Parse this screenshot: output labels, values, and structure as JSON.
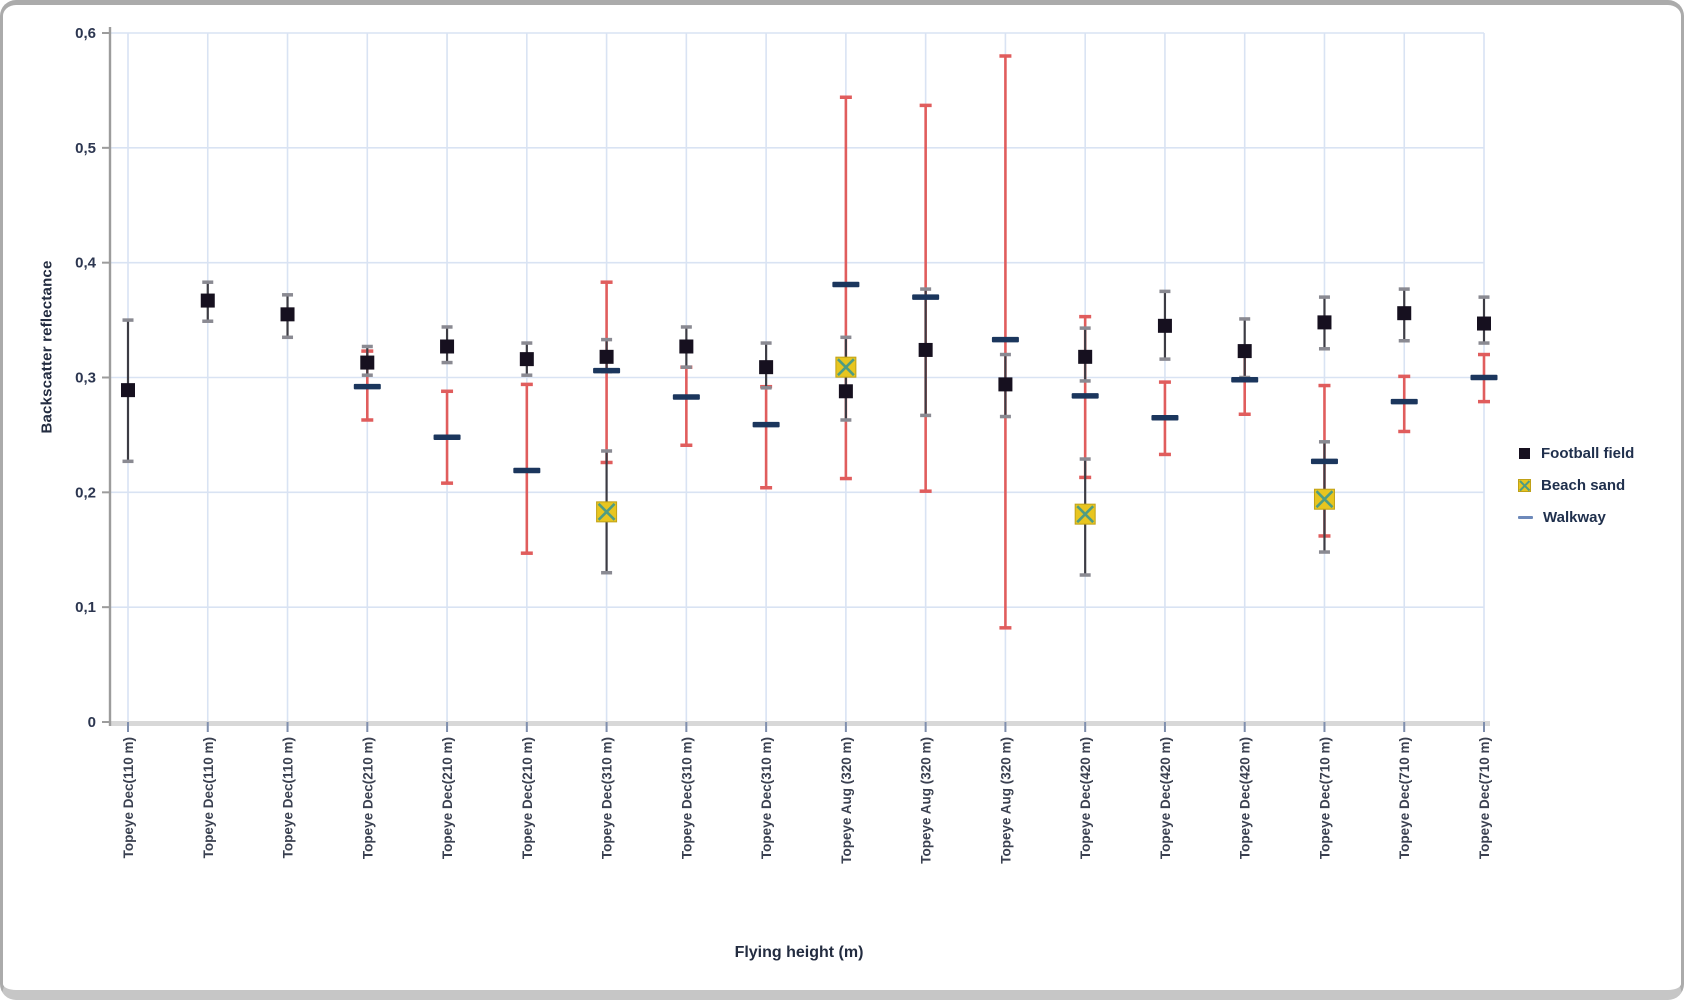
{
  "style": {
    "grid": "#d9e3f3",
    "axis": "#9c9c9c",
    "axis_band": "#d8d8d8",
    "xtick": "#7f8fae",
    "football": "#16101f",
    "black_err": "#3c3c44",
    "gray_cap": "#8a8a92",
    "beach_fill": "#e8c51f",
    "beach_edge": "#c0a117",
    "beach_x": "#4f9c83",
    "walkway": "#1b365d",
    "walkway_legend": "#6d89ba",
    "red_err": "#e05d5d",
    "frame_border": "#ababab"
  },
  "chart_data": {
    "type": "scatter",
    "title": "",
    "xlabel": "Flying height (m)",
    "ylabel": "Backscatter reflectance",
    "ylim": [
      0,
      0.6
    ],
    "grid": true,
    "legend_position": "right",
    "y_ticklabels": [
      "0",
      "0,1",
      "0,2",
      "0,3",
      "0,4",
      "0,5",
      "0,6"
    ],
    "categories": [
      "Topeye Dec(110 m)",
      "Topeye Dec(110 m)",
      "Topeye Dec(110 m)",
      "Topeye Dec(210 m)",
      "Topeye Dec(210 m)",
      "Topeye Dec(210 m)",
      "Topeye Dec(310 m)",
      "Topeye Dec(310 m)",
      "Topeye Dec(310 m)",
      "Topeye Aug (320 m)",
      "Topeye Aug (320 m)",
      "Topeye Aug (320 m)",
      "Topeye Dec(420 m)",
      "Topeye Dec(420 m)",
      "Topeye Dec(420 m)",
      "Topeye Dec(710 m)",
      "Topeye Dec(710 m)",
      "Topeye Dec(710 m)"
    ],
    "series": [
      {
        "name": "Football field",
        "marker": "square",
        "error_color": "black",
        "values": [
          0.289,
          0.367,
          0.355,
          0.313,
          0.327,
          0.316,
          0.318,
          0.327,
          0.309,
          0.288,
          0.324,
          0.294,
          0.318,
          0.345,
          0.323,
          0.348,
          0.356,
          0.347
        ],
        "err_lo": [
          0.227,
          0.349,
          0.335,
          0.302,
          0.313,
          0.302,
          0.305,
          0.309,
          0.291,
          0.263,
          0.267,
          0.266,
          0.297,
          0.316,
          0.3,
          0.325,
          0.332,
          0.33
        ],
        "err_hi": [
          0.35,
          0.383,
          0.372,
          0.327,
          0.344,
          0.33,
          0.333,
          0.344,
          0.33,
          0.335,
          0.377,
          0.32,
          0.343,
          0.375,
          0.351,
          0.37,
          0.377,
          0.37
        ]
      },
      {
        "name": "Beach sand",
        "marker": "x-square",
        "error_color": "black",
        "values": [
          null,
          null,
          null,
          null,
          null,
          null,
          0.183,
          null,
          null,
          0.309,
          null,
          null,
          0.181,
          null,
          null,
          0.194,
          null,
          null
        ],
        "err_lo": [
          null,
          null,
          null,
          null,
          null,
          null,
          0.13,
          null,
          null,
          null,
          null,
          null,
          0.128,
          null,
          null,
          0.148,
          null,
          null
        ],
        "err_hi": [
          null,
          null,
          null,
          null,
          null,
          null,
          0.236,
          null,
          null,
          null,
          null,
          null,
          0.229,
          null,
          null,
          0.244,
          null,
          null
        ]
      },
      {
        "name": "Walkway",
        "marker": "dash",
        "error_color": "red",
        "values": [
          null,
          null,
          null,
          0.292,
          0.248,
          0.219,
          0.306,
          0.283,
          0.259,
          0.381,
          0.37,
          0.333,
          0.284,
          0.265,
          0.298,
          0.227,
          0.279,
          0.3
        ],
        "err_lo": [
          null,
          null,
          null,
          0.263,
          0.208,
          0.147,
          0.226,
          0.241,
          0.204,
          0.212,
          0.201,
          0.082,
          0.213,
          0.233,
          0.268,
          0.162,
          0.253,
          0.279
        ],
        "err_hi": [
          null,
          null,
          null,
          0.323,
          0.288,
          0.294,
          0.383,
          0.309,
          0.292,
          0.544,
          0.537,
          0.58,
          0.353,
          0.296,
          0.326,
          0.293,
          0.301,
          0.32
        ]
      }
    ]
  }
}
